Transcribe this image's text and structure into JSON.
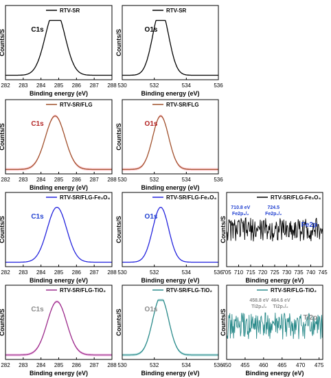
{
  "chart_data": [
    {
      "type": "line",
      "row": 1,
      "col": 1,
      "legend": "RTV-SR",
      "peak_label": "C1s",
      "peak_label_color": "#000000",
      "line_color": "#000000",
      "shade_color": "",
      "xlabel": "Binding energy (eV)",
      "ylabel": "Counts/S",
      "xlim": [
        282,
        288
      ],
      "xticks": [
        282,
        283,
        284,
        285,
        286,
        287,
        288
      ],
      "peak_center": 284.8,
      "peak_width": 0.55,
      "peak_height": 0.88,
      "baseline": 0.06,
      "noise": 0,
      "annotations": []
    },
    {
      "type": "line",
      "row": 1,
      "col": 2,
      "legend": "RTV-SR",
      "peak_label": "O1s",
      "peak_label_color": "#000000",
      "line_color": "#000000",
      "shade_color": "",
      "xlabel": "Binding energy (eV)",
      "ylabel": "Counts/S",
      "xlim": [
        530,
        536
      ],
      "xticks": [
        530,
        532,
        534,
        536
      ],
      "peak_center": 532.4,
      "peak_width": 0.5,
      "peak_height": 0.88,
      "baseline": 0.06,
      "noise": 0,
      "annotations": []
    },
    {
      "type": "line",
      "row": 2,
      "col": 1,
      "legend": "RTV-SR/FLG",
      "peak_label": "C1s",
      "peak_label_color": "#b22222",
      "line_color": "#a0522d",
      "shade_color": "#ffb6c1",
      "xlabel": "Binding energy (eV)",
      "ylabel": "Counts/S",
      "xlim": [
        282,
        288
      ],
      "xticks": [
        282,
        283,
        284,
        285,
        286,
        287,
        288
      ],
      "peak_center": 284.8,
      "peak_width": 0.55,
      "peak_height": 0.72,
      "baseline": 0.06,
      "noise": 0,
      "annotations": []
    },
    {
      "type": "line",
      "row": 2,
      "col": 2,
      "legend": "RTV-SR/FLG",
      "peak_label": "O1s",
      "peak_label_color": "#b22222",
      "line_color": "#a0522d",
      "shade_color": "#ffb6c1",
      "xlabel": "Binding energy (eV)",
      "ylabel": "Counts/S",
      "xlim": [
        530,
        536
      ],
      "xticks": [
        530,
        532,
        534,
        536
      ],
      "peak_center": 532.4,
      "peak_width": 0.5,
      "peak_height": 0.72,
      "baseline": 0.06,
      "noise": 0,
      "annotations": []
    },
    {
      "type": "line",
      "row": 3,
      "col": 1,
      "legend": "RTV-SR/FLG-Fe₃O₄",
      "peak_label": "C1s",
      "peak_label_color": "#1f3fd0",
      "line_color": "#2222dd",
      "shade_color": "",
      "xlabel": "Binding energy (eV)",
      "ylabel": "Counts/S",
      "xlim": [
        282,
        288
      ],
      "xticks": [
        282,
        283,
        284,
        285,
        286,
        287,
        288
      ],
      "peak_center": 284.9,
      "peak_width": 0.55,
      "peak_height": 0.74,
      "baseline": 0.06,
      "noise": 0,
      "annotations": []
    },
    {
      "type": "line",
      "row": 3,
      "col": 2,
      "legend": "RTV-SR/FLG-Fe₃O₄",
      "peak_label": "O1s",
      "peak_label_color": "#1f3fd0",
      "line_color": "#2222dd",
      "shade_color": "",
      "xlabel": "Binding energy (eV)",
      "ylabel": "Counts/S",
      "xlim": [
        530,
        536
      ],
      "xticks": [
        530,
        532,
        534,
        536
      ],
      "peak_center": 532.4,
      "peak_width": 0.5,
      "peak_height": 0.74,
      "baseline": 0.06,
      "noise": 0,
      "annotations": []
    },
    {
      "type": "line",
      "row": 3,
      "col": 3,
      "legend": "RTV-SR/FLG-Fe₃O₄",
      "peak_label": "Fe2p",
      "peak_label_color": "#1f3fd0",
      "line_color": "#000000",
      "shade_color": "",
      "xlabel": "Binding energy (eV)",
      "ylabel": "Counts/S",
      "xlim": [
        705,
        745
      ],
      "xticks": [
        705,
        710,
        715,
        720,
        725,
        730,
        735,
        740,
        745
      ],
      "peak_center": 0,
      "peak_width": 1,
      "peak_height": 0,
      "baseline": 0.5,
      "noise": 0.16,
      "annotations": [
        {
          "text": "710.8 eV",
          "x": 710.8,
          "color": "#1f3fd0"
        },
        {
          "text": "Fe2p₃/₂",
          "x": 710.8,
          "color": "#1f3fd0"
        },
        {
          "text": "724.5",
          "x": 724.5,
          "color": "#1f3fd0"
        },
        {
          "text": "Fe2p₁/₂",
          "x": 724.5,
          "color": "#1f3fd0"
        }
      ]
    },
    {
      "type": "line",
      "row": 4,
      "col": 1,
      "legend": "RTV-SR/FLG-TiO₂",
      "peak_label": "C1s",
      "peak_label_color": "#8a8a8a",
      "line_color": "#9b2c8b",
      "shade_color": "#f4c2e8",
      "xlabel": "Binding energy (eV)",
      "ylabel": "Counts/S",
      "xlim": [
        282,
        288
      ],
      "xticks": [
        282,
        283,
        284,
        285,
        286,
        287,
        288
      ],
      "peak_center": 284.9,
      "peak_width": 0.55,
      "peak_height": 0.72,
      "baseline": 0.06,
      "noise": 0,
      "annotations": []
    },
    {
      "type": "line",
      "row": 4,
      "col": 2,
      "legend": "RTV-SR/FLG-TiO₂",
      "peak_label": "O1s",
      "peak_label_color": "#8a8a8a",
      "line_color": "#2a8a8a",
      "shade_color": "#bfe6e6",
      "xlabel": "Binding energy (eV)",
      "ylabel": "Counts/S",
      "xlim": [
        530,
        536
      ],
      "xticks": [
        530,
        532,
        534,
        536
      ],
      "peak_center": 532.4,
      "peak_width": 0.5,
      "peak_height": 0.78,
      "baseline": 0.06,
      "noise": 0,
      "annotations": []
    },
    {
      "type": "line",
      "row": 4,
      "col": 3,
      "legend": "RTV-SR/FLG-TiO₂",
      "peak_label": "Ti2p",
      "peak_label_color": "#8a8a8a",
      "line_color": "#2a8a8a",
      "shade_color": "",
      "xlabel": "Binding energy (eV)",
      "ylabel": "Counts/S",
      "xlim": [
        450,
        476
      ],
      "xticks": [
        450,
        455,
        460,
        465,
        470,
        475
      ],
      "peak_center": 0,
      "peak_width": 1,
      "peak_height": 0,
      "baseline": 0.45,
      "noise": 0.18,
      "annotations": [
        {
          "text": "458.8 eV",
          "x": 458.8,
          "color": "#8a8a8a"
        },
        {
          "text": "Ti2p₃/₂",
          "x": 458.8,
          "color": "#8a8a8a"
        },
        {
          "text": "464.6 eV",
          "x": 464.6,
          "color": "#8a8a8a"
        },
        {
          "text": "Ti2p₁/₂",
          "x": 464.6,
          "color": "#8a8a8a"
        }
      ]
    }
  ]
}
